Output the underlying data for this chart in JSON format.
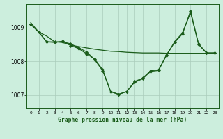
{
  "bg_color": "#cceedd",
  "grid_color": "#aaccbb",
  "line_color": "#1a5c1a",
  "title": "Graphe pression niveau de la mer (hPa)",
  "xlim": [
    -0.5,
    23.5
  ],
  "ylim": [
    1006.6,
    1009.7
  ],
  "yticks": [
    1007,
    1008,
    1009
  ],
  "xticks": [
    0,
    1,
    2,
    3,
    4,
    5,
    6,
    7,
    8,
    9,
    10,
    11,
    12,
    13,
    14,
    15,
    16,
    17,
    18,
    19,
    20,
    21,
    22,
    23
  ],
  "line1_x": [
    0,
    1,
    2,
    3,
    4,
    5,
    6,
    7,
    8,
    9,
    10,
    11,
    12,
    13,
    14,
    15,
    16,
    17,
    18,
    19,
    20,
    21,
    22,
    23
  ],
  "line1_y": [
    1009.15,
    1008.87,
    1008.75,
    1008.58,
    1008.56,
    1008.48,
    1008.44,
    1008.4,
    1008.36,
    1008.33,
    1008.3,
    1008.29,
    1008.27,
    1008.26,
    1008.25,
    1008.25,
    1008.25,
    1008.24,
    1008.24,
    1008.24,
    1008.24,
    1008.24,
    1008.24,
    1008.24
  ],
  "line2_x": [
    0,
    1,
    2,
    3,
    4,
    5,
    6,
    7,
    8,
    9,
    10,
    11,
    12,
    13,
    14,
    15,
    16,
    17,
    18,
    19,
    20,
    21,
    22,
    23
  ],
  "line2_y": [
    1009.1,
    1008.87,
    1008.58,
    1008.56,
    1008.6,
    1008.47,
    1008.38,
    1008.22,
    1008.07,
    1007.75,
    1007.1,
    1007.02,
    1007.1,
    1007.4,
    1007.5,
    1007.72,
    1007.75,
    1008.18,
    1008.58,
    1008.85,
    1009.45,
    1008.52,
    1008.25,
    1008.25
  ],
  "line3_x": [
    0,
    1,
    2,
    3,
    4,
    5,
    6,
    7,
    8,
    9,
    10,
    11,
    12,
    13,
    14,
    15,
    16,
    17,
    18,
    19,
    20,
    21,
    22,
    23
  ],
  "line3_y": [
    1009.1,
    1008.87,
    1008.58,
    1008.58,
    1008.58,
    1008.52,
    1008.4,
    1008.28,
    1008.05,
    1007.72,
    1007.1,
    1007.02,
    1007.1,
    1007.38,
    1007.48,
    1007.7,
    1007.73,
    1008.2,
    1008.56,
    1008.82,
    1009.5,
    1008.5,
    1008.25,
    1008.25
  ]
}
